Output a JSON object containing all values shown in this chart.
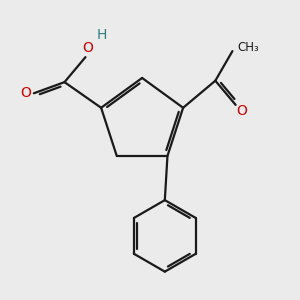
{
  "bg_color": "#ebebeb",
  "bond_color": "#1a1a1a",
  "oxygen_color": "#cc0000",
  "hydrogen_color": "#2e7d7d",
  "lw": 1.6,
  "dbo": 0.055,
  "xlim": [
    -2.8,
    2.8
  ],
  "ylim": [
    -2.8,
    2.8
  ]
}
